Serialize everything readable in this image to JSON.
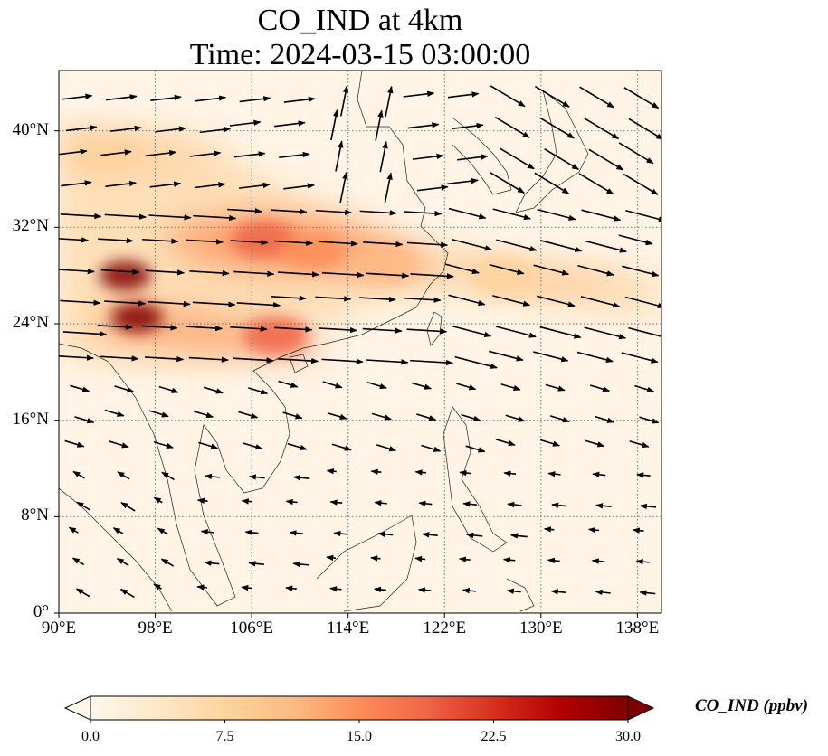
{
  "title_line1": "CO_IND at 4km",
  "title_line2": "Time: 2024-03-15 03:00:00",
  "lat_ticks": [
    "40°N",
    "32°N",
    "24°N",
    "16°N",
    "8°N",
    "0°"
  ],
  "lon_ticks": [
    "90°E",
    "98°E",
    "106°E",
    "114°E",
    "122°E",
    "130°E",
    "138°E"
  ],
  "colorbar": {
    "label": "CO_IND (ppbv)",
    "ticks": [
      "0.0",
      "7.5",
      "15.0",
      "22.5",
      "30.0"
    ],
    "colormap": "OrRd",
    "range": [
      0,
      30
    ],
    "extend": "both",
    "colors": [
      "#fff7ec",
      "#fee8c8",
      "#fdd49e",
      "#fdbb84",
      "#fc8d59",
      "#ef6548",
      "#d7301f",
      "#b30000",
      "#7f0000"
    ]
  },
  "map_extent": {
    "lon": [
      90,
      140
    ],
    "lat": [
      0,
      45
    ]
  },
  "gridlines": "dotted",
  "wind_vectors": "black arrows",
  "concentration_hotspots": [
    {
      "lon": 95.5,
      "lat": 28,
      "value": 30
    },
    {
      "lon": 96.5,
      "lat": 24.5,
      "value": 30
    },
    {
      "lon": 107,
      "lat": 31,
      "value": 19
    },
    {
      "lon": 111,
      "lat": 30,
      "value": 15
    },
    {
      "lon": 108,
      "lat": 23,
      "value": 17
    },
    {
      "lon": 117,
      "lat": 29,
      "value": 11
    },
    {
      "lon": 127,
      "lat": 28,
      "value": 7
    },
    {
      "lon": 94,
      "lat": 38,
      "value": 7
    }
  ]
}
